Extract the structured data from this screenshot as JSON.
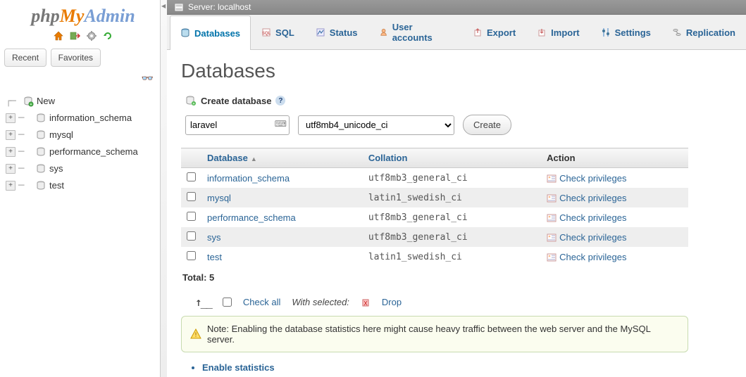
{
  "logo": {
    "part1": "php",
    "part2": "My",
    "part3": "Admin"
  },
  "nav_tabs": {
    "recent": "Recent",
    "favorites": "Favorites"
  },
  "tree": {
    "new_label": "New",
    "items": [
      "information_schema",
      "mysql",
      "performance_schema",
      "sys",
      "test"
    ]
  },
  "server_label": "Server: localhost",
  "tabs": [
    {
      "label": "Databases",
      "active": true
    },
    {
      "label": "SQL"
    },
    {
      "label": "Status"
    },
    {
      "label": "User accounts"
    },
    {
      "label": "Export"
    },
    {
      "label": "Import"
    },
    {
      "label": "Settings"
    },
    {
      "label": "Replication"
    }
  ],
  "page_title": "Databases",
  "create": {
    "heading": "Create database",
    "input_value": "laravel",
    "collation_selected": "utf8mb4_unicode_ci",
    "button": "Create"
  },
  "table": {
    "head_database": "Database",
    "head_collation": "Collation",
    "head_action": "Action",
    "check_privileges": "Check privileges",
    "rows": [
      {
        "name": "information_schema",
        "collation": "utf8mb3_general_ci"
      },
      {
        "name": "mysql",
        "collation": "latin1_swedish_ci"
      },
      {
        "name": "performance_schema",
        "collation": "utf8mb3_general_ci"
      },
      {
        "name": "sys",
        "collation": "utf8mb3_general_ci"
      },
      {
        "name": "test",
        "collation": "latin1_swedish_ci"
      }
    ],
    "total_label": "Total: 5"
  },
  "bulk": {
    "check_all": "Check all",
    "with_selected": "With selected:",
    "drop": "Drop"
  },
  "note": "Note: Enabling the database statistics here might cause heavy traffic between the web server and the MySQL server.",
  "enable_stats": "Enable statistics",
  "colors": {
    "link": "#2a6496",
    "orange": "#e97b00",
    "blue": "#799ed4"
  }
}
